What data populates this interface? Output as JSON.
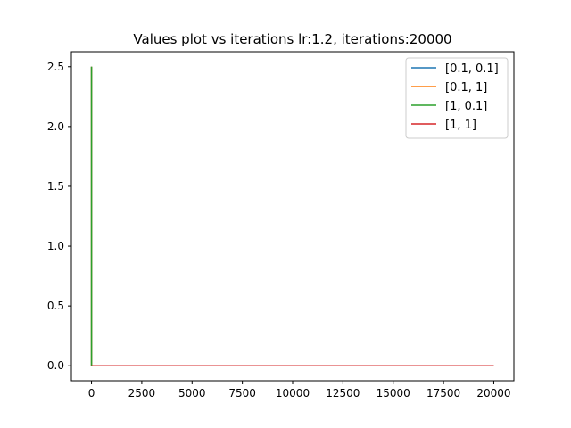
{
  "chart_data": {
    "type": "line",
    "title": "Values plot vs iterations lr:1.2, iterations:20000",
    "xlabel": "",
    "ylabel": "",
    "xlim": [
      -1000,
      21000
    ],
    "ylim": [
      -0.125,
      2.625
    ],
    "xticks": [
      0,
      2500,
      5000,
      7500,
      10000,
      12500,
      15000,
      17500,
      20000
    ],
    "yticks": [
      0.0,
      0.5,
      1.0,
      1.5,
      2.0,
      2.5
    ],
    "xtick_labels": [
      "0",
      "2500",
      "5000",
      "7500",
      "10000",
      "12500",
      "15000",
      "17500",
      "20000"
    ],
    "ytick_labels": [
      "0.0",
      "0.5",
      "1.0",
      "1.5",
      "2.0",
      "2.5"
    ],
    "grid": false,
    "legend_position": "top-right",
    "series": [
      {
        "name": "[0.1, 0.1]",
        "color": "#1f77b4",
        "x": [
          0,
          1,
          20000
        ],
        "y": [
          2.5,
          0.0,
          0.0
        ]
      },
      {
        "name": "[0.1, 1]",
        "color": "#ff7f0e",
        "x": [
          0,
          1,
          20000
        ],
        "y": [
          2.5,
          0.0,
          0.0
        ]
      },
      {
        "name": "[1, 0.1]",
        "color": "#2ca02c",
        "x": [
          0,
          1,
          20000
        ],
        "y": [
          2.5,
          0.0,
          0.0
        ]
      },
      {
        "name": "[1, 1]",
        "color": "#d62728",
        "x": [
          0,
          20000
        ],
        "y": [
          0.0,
          0.0
        ]
      }
    ]
  }
}
